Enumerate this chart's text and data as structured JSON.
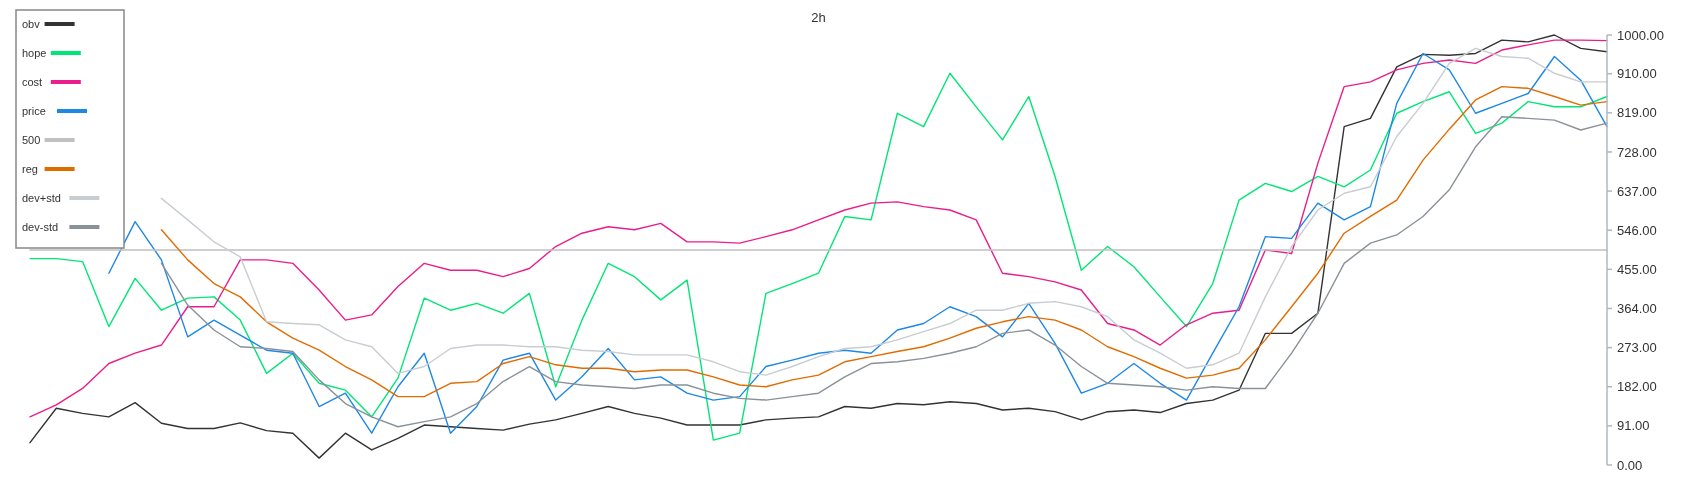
{
  "chart_data": {
    "type": "line",
    "title": "2h",
    "categories": [
      null,
      null,
      null,
      null,
      null,
      null,
      null,
      null,
      null,
      null,
      null,
      null,
      null,
      null,
      null,
      null,
      null,
      null,
      null,
      null,
      null,
      null,
      null,
      null,
      null,
      null,
      null,
      null,
      null,
      null,
      null,
      null,
      null,
      null,
      null,
      null,
      null,
      null,
      null,
      null,
      null,
      null,
      null,
      null,
      null,
      null,
      null,
      null,
      null,
      null,
      null,
      null,
      null,
      null,
      null,
      null,
      null,
      null,
      null,
      null,
      null
    ],
    "tick_labels": "y",
    "ylim": [
      0,
      1000
    ],
    "yticks": [
      {
        "value": 0,
        "label": "0.00"
      },
      {
        "value": 91,
        "label": "91.00"
      },
      {
        "value": 182,
        "label": "182.00"
      },
      {
        "value": 273,
        "label": "273.00"
      },
      {
        "value": 364,
        "label": "364.00"
      },
      {
        "value": 455,
        "label": "455.00"
      },
      {
        "value": 546,
        "label": "546.00"
      },
      {
        "value": 637,
        "label": "637.00"
      },
      {
        "value": 728,
        "label": "728.00"
      },
      {
        "value": 819,
        "label": "819.00"
      },
      {
        "value": 910,
        "label": "910.00"
      },
      {
        "value": 1000,
        "label": "1000.00"
      }
    ],
    "legend": "top left",
    "grid": false,
    "marker": "none",
    "line_style": "solid",
    "series": [
      {
        "name": "obv",
        "color": "#333333",
        "values": [
          52,
          132,
          120,
          112,
          145,
          97,
          85,
          85,
          98,
          80,
          74,
          16,
          74,
          35,
          62,
          93,
          89,
          85,
          81,
          95,
          105,
          120,
          136,
          120,
          109,
          93,
          93,
          93,
          105,
          109,
          112,
          136,
          132,
          143,
          140,
          147,
          143,
          128,
          132,
          124,
          105,
          124,
          128,
          122,
          143,
          151,
          174,
          306,
          306,
          353,
          787,
          806,
          926,
          955,
          953,
          957,
          988,
          984,
          1000,
          969,
          961
        ]
      },
      {
        "name": "hope",
        "color": "#00e676",
        "values": [
          480,
          480,
          473,
          322,
          434,
          360,
          388,
          391,
          337,
          213,
          260,
          190,
          174,
          112,
          202,
          388,
          360,
          376,
          353,
          399,
          182,
          337,
          469,
          438,
          384,
          430,
          58,
          74,
          399,
          422,
          446,
          578,
          570,
          818,
          787,
          911,
          833,
          756,
          857,
          671,
          453,
          508,
          461,
          391,
          322,
          422,
          616,
          655,
          636,
          671,
          647,
          686,
          818,
          845,
          868,
          771,
          795,
          845,
          833,
          833,
          857
        ]
      },
      {
        "name": "cost",
        "color": "#e91e8c",
        "values": [
          112,
          140,
          178,
          236,
          260,
          279,
          368,
          368,
          477,
          477,
          469,
          407,
          337,
          349,
          415,
          469,
          453,
          453,
          438,
          457,
          508,
          539,
          554,
          547,
          562,
          519,
          519,
          516,
          531,
          547,
          570,
          593,
          609,
          612,
          601,
          593,
          570,
          446,
          438,
          426,
          407,
          329,
          314,
          279,
          326,
          353,
          360,
          500,
          492,
          702,
          880,
          891,
          919,
          934,
          942,
          934,
          965,
          977,
          988,
          988,
          987
        ]
      },
      {
        "name": "price",
        "color": "#1e88e5",
        "values": [
          null,
          null,
          null,
          446,
          566,
          477,
          298,
          337,
          302,
          267,
          260,
          136,
          167,
          74,
          182,
          260,
          74,
          136,
          244,
          260,
          151,
          205,
          271,
          198,
          205,
          167,
          151,
          159,
          229,
          244,
          260,
          267,
          260,
          314,
          329,
          368,
          345,
          298,
          376,
          283,
          167,
          190,
          236,
          190,
          151,
          260,
          368,
          531,
          527,
          609,
          570,
          601,
          841,
          957,
          919,
          818,
          841,
          864,
          950,
          895,
          787
        ]
      },
      {
        "name": "500",
        "color": "#c0c0c0",
        "values": [
          500,
          500,
          500,
          500,
          500,
          500,
          500,
          500,
          500,
          500,
          500,
          500,
          500,
          500,
          500,
          500,
          500,
          500,
          500,
          500,
          500,
          500,
          500,
          500,
          500,
          500,
          500,
          500,
          500,
          500,
          500,
          500,
          500,
          500,
          500,
          500,
          500,
          500,
          500,
          500,
          500,
          500,
          500,
          500,
          500,
          500,
          500,
          500,
          500,
          500,
          500,
          500,
          500,
          500,
          500,
          500,
          500,
          500,
          500,
          500,
          500
        ]
      },
      {
        "name": "reg",
        "color": "#e06c00",
        "values": [
          null,
          null,
          null,
          null,
          null,
          547,
          477,
          422,
          391,
          333,
          295,
          267,
          229,
          198,
          159,
          159,
          190,
          194,
          236,
          252,
          233,
          225,
          225,
          217,
          221,
          221,
          205,
          186,
          182,
          198,
          209,
          240,
          252,
          264,
          275,
          295,
          318,
          333,
          345,
          337,
          314,
          275,
          252,
          225,
          202,
          209,
          225,
          291,
          368,
          446,
          539,
          578,
          616,
          709,
          781,
          849,
          880,
          876,
          857,
          837,
          845
        ]
      },
      {
        "name": "dev+std",
        "color": "#c8cdd2",
        "values": [
          null,
          null,
          null,
          null,
          null,
          620,
          570,
          519,
          484,
          333,
          329,
          326,
          291,
          275,
          213,
          229,
          271,
          279,
          279,
          275,
          275,
          267,
          264,
          256,
          256,
          256,
          240,
          217,
          209,
          229,
          252,
          271,
          275,
          291,
          310,
          329,
          360,
          360,
          376,
          380,
          368,
          345,
          291,
          260,
          225,
          233,
          260,
          391,
          508,
          593,
          632,
          647,
          764,
          841,
          934,
          969,
          950,
          946,
          911,
          891,
          891
        ]
      },
      {
        "name": "dev-std",
        "color": "#8a9199",
        "values": [
          null,
          null,
          null,
          null,
          null,
          469,
          372,
          314,
          275,
          271,
          264,
          198,
          143,
          112,
          89,
          101,
          112,
          143,
          194,
          229,
          194,
          186,
          182,
          178,
          186,
          186,
          167,
          155,
          151,
          159,
          167,
          205,
          236,
          240,
          248,
          260,
          275,
          306,
          314,
          279,
          229,
          190,
          186,
          182,
          174,
          182,
          178,
          178,
          260,
          353,
          469,
          516,
          535,
          578,
          640,
          740,
          810,
          806,
          802,
          779,
          795
        ]
      }
    ]
  }
}
